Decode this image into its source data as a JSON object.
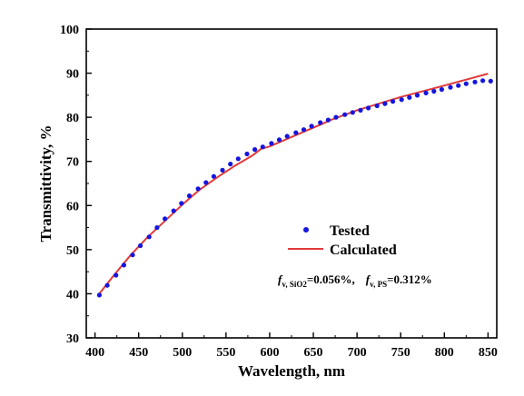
{
  "chart_data": {
    "type": "line",
    "xlabel": "Wavelength, nm",
    "ylabel": "Transmittivity, %",
    "xlim": [
      390,
      860
    ],
    "ylim": [
      30,
      100
    ],
    "xticks": [
      400,
      450,
      500,
      550,
      600,
      650,
      700,
      750,
      800,
      850
    ],
    "yticks": [
      30,
      40,
      50,
      60,
      70,
      80,
      90,
      100
    ],
    "grid": false,
    "legend_position": "lower-right",
    "series": [
      {
        "name": "Tested",
        "style": "dots",
        "color": "#1515e0",
        "x": [
          405,
          414,
          424,
          433,
          443,
          452,
          462,
          471,
          480,
          490,
          499,
          508,
          518,
          527,
          536,
          546,
          555,
          564,
          574,
          583,
          592,
          602,
          611,
          620,
          630,
          639,
          648,
          658,
          667,
          676,
          686,
          695,
          704,
          713,
          723,
          732,
          741,
          751,
          760,
          769,
          779,
          788,
          797,
          807,
          816,
          825,
          835,
          844,
          853
        ],
        "y": [
          39.7,
          41.9,
          44.2,
          46.5,
          48.8,
          50.9,
          52.9,
          55.0,
          57.0,
          58.8,
          60.5,
          62.2,
          63.8,
          65.2,
          66.6,
          68.0,
          69.4,
          70.6,
          71.7,
          72.7,
          73.3,
          74.1,
          74.9,
          75.7,
          76.5,
          77.2,
          78.0,
          78.8,
          79.4,
          80.0,
          80.6,
          81.1,
          81.6,
          82.1,
          82.6,
          83.1,
          83.6,
          84.0,
          84.5,
          85.0,
          85.5,
          85.9,
          86.3,
          86.8,
          87.2,
          87.6,
          88.0,
          88.3,
          88.2
        ]
      },
      {
        "name": "Calculated",
        "style": "line",
        "color": "#e03a3a",
        "x": [
          405,
          420,
          440,
          460,
          480,
          500,
          520,
          540,
          560,
          580,
          590,
          600,
          620,
          640,
          660,
          670,
          700,
          750,
          800,
          850
        ],
        "y": [
          40.0,
          43.8,
          48.6,
          52.8,
          56.5,
          60.2,
          63.6,
          66.4,
          69.0,
          71.3,
          72.8,
          73.4,
          75.1,
          76.8,
          78.5,
          79.4,
          81.6,
          84.6,
          87.2,
          89.9
        ]
      }
    ],
    "annotation": {
      "f_symbol": "f",
      "sub1": "v, SiO2",
      "val1": "=0.056%,",
      "sub2": "v, PS",
      "val2": "=0.312%"
    }
  }
}
